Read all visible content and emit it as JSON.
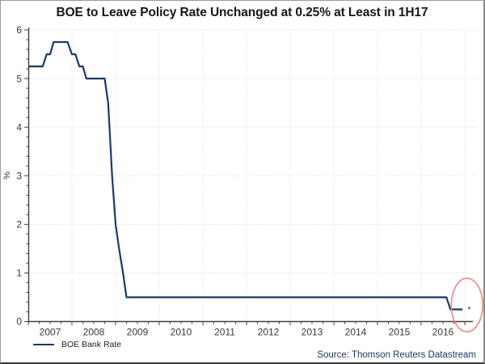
{
  "source": "Source: Thomson Reuters Datastream",
  "colors": {
    "line": "#183a6b",
    "grid": "#d8d8d8",
    "axis": "#404040",
    "tick_label": "#383838",
    "title": "#15151d",
    "source_text": "#1f3864",
    "annotation_ellipse": "#ef8e84",
    "forecast_dot": "#7d838b"
  },
  "chart_data": {
    "type": "line",
    "title": "BOE to Leave Policy Rate Unchanged at 0.25% at Least in 1H17",
    "xlabel": "",
    "ylabel": "%",
    "ylim": [
      0,
      6
    ],
    "xlim": [
      2007,
      2017.2
    ],
    "grid": true,
    "legend_position": "bottom-left",
    "x_tick_labels": [
      "2007",
      "2008",
      "2009",
      "2010",
      "2011",
      "2012",
      "2013",
      "2014",
      "2015",
      "2016"
    ],
    "y_tick_labels": [
      "0",
      "1",
      "2",
      "3",
      "4",
      "5",
      "6"
    ],
    "y_minor_step": 0.2,
    "x_minor_step": 0.25,
    "series": [
      {
        "name": "BOE Bank Rate",
        "points": [
          [
            2007.0,
            5.25
          ],
          [
            2007.33,
            5.25
          ],
          [
            2007.42,
            5.5
          ],
          [
            2007.5,
            5.5
          ],
          [
            2007.58,
            5.75
          ],
          [
            2007.9,
            5.75
          ],
          [
            2008.0,
            5.5
          ],
          [
            2008.08,
            5.5
          ],
          [
            2008.17,
            5.25
          ],
          [
            2008.25,
            5.25
          ],
          [
            2008.33,
            5.0
          ],
          [
            2008.75,
            5.0
          ],
          [
            2008.83,
            4.5
          ],
          [
            2008.92,
            3.0
          ],
          [
            2009.0,
            2.0
          ],
          [
            2009.08,
            1.5
          ],
          [
            2009.17,
            1.0
          ],
          [
            2009.25,
            0.5
          ],
          [
            2016.58,
            0.5
          ],
          [
            2016.67,
            0.25
          ],
          [
            2016.95,
            0.25
          ]
        ]
      }
    ],
    "forecast_dot": {
      "x": 2017.1,
      "y": 0.28
    },
    "annotation": {
      "shape": "ellipse",
      "x": 2017.05,
      "y": 0.34,
      "rx_years": 0.36,
      "ry_units": 0.55
    }
  }
}
